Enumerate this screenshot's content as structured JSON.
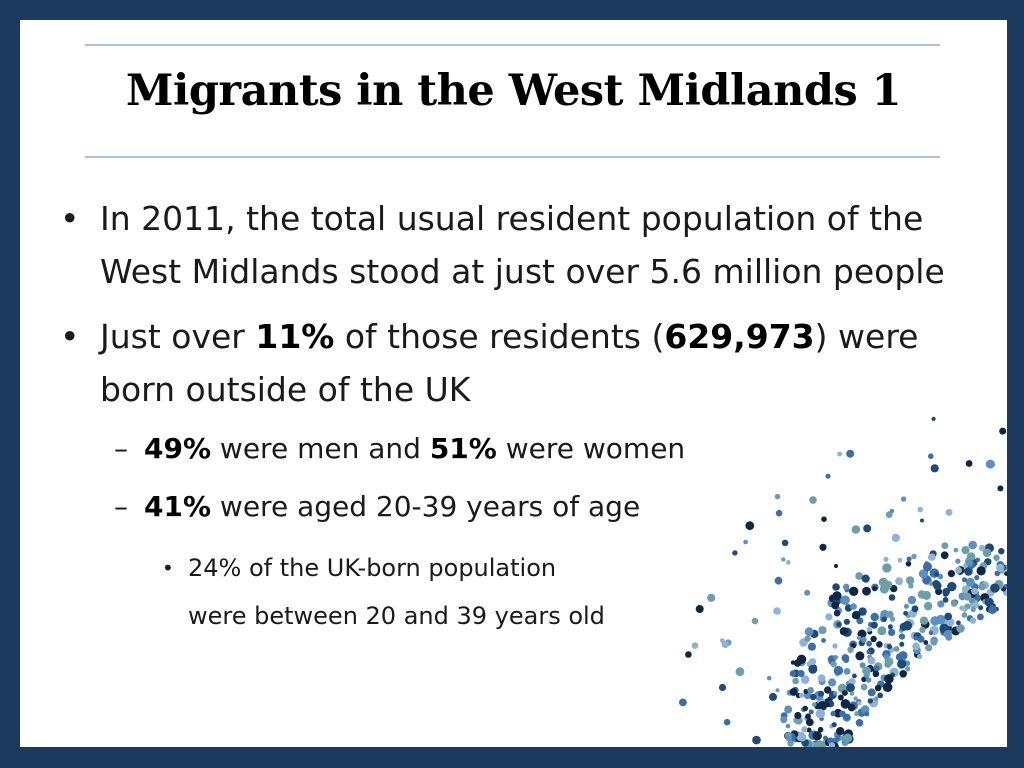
{
  "title": "Migrants in the West Midlands 1",
  "bullets": {
    "b1": "In 2011, the total usual resident population of the West Midlands stood at just over 5.6 million people",
    "b2": {
      "prefix": "Just over ",
      "pct": "11%",
      "mid": " of those residents (",
      "count": "629,973",
      "suffix": ") were born outside of the UK"
    },
    "sub1": {
      "men_pct": "49%",
      "mid": " were men and ",
      "women_pct": "51%",
      "suffix": " were women"
    },
    "sub2": {
      "pct": "41%",
      "suffix": " were aged 20-39 years of age"
    },
    "subsub1": "24% of the UK-born population were between 20 and 39 years old"
  },
  "glyphs": {
    "bullet": "•",
    "dash": "–"
  },
  "colors": {
    "frame": "#1b3a5e",
    "rule": "#a9c3dc",
    "dots": [
      "#0f2747",
      "#3b6fa8",
      "#5c8fc2",
      "#8fb3d3",
      "#6c9fa9",
      "#1d4a77"
    ]
  }
}
